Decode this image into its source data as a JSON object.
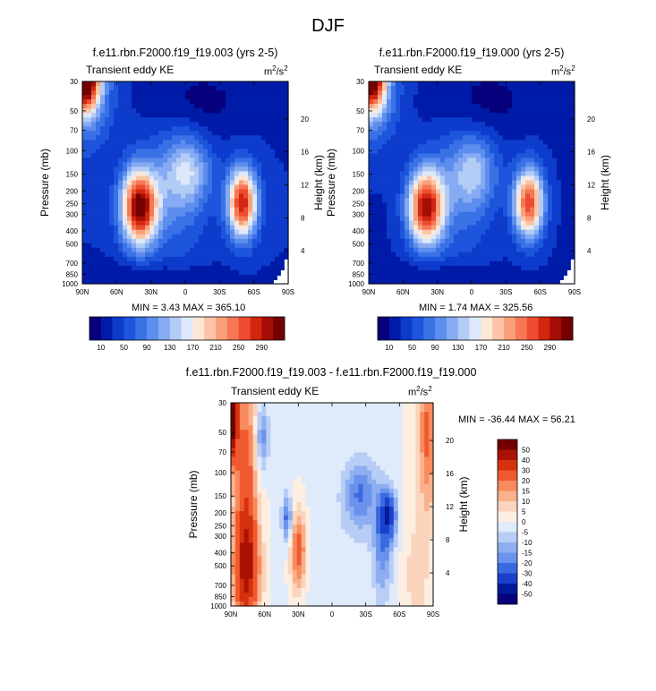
{
  "figure": {
    "title": "DJF"
  },
  "chart_data": [
    {
      "type": "heatmap",
      "title": "f.e11.rbn.F2000.f19_f19.003 (yrs 2-5)",
      "subtitle": "Transient eddy KE",
      "units": "m²/s²",
      "units_base": "m",
      "units_sup1": "2",
      "units_mid": "/s",
      "units_sup2": "2",
      "xlabel": "",
      "ylabel": "Pressure (mb)",
      "y2label": "Height (km)",
      "x_ticks": [
        "90N",
        "60N",
        "30N",
        "0",
        "30S",
        "60S",
        "90S"
      ],
      "y_ticks": [
        "30",
        "50",
        "70",
        "100",
        "150",
        "200",
        "250",
        "300",
        "400",
        "500",
        "700",
        "850",
        "1000"
      ],
      "y2_ticks": [
        "20",
        "16",
        "12",
        "8",
        "4"
      ],
      "min_label": "MIN =   3.43  MAX = 365.10",
      "min": 3.43,
      "max": 365.1,
      "legend_labels": [
        "10",
        "50",
        "90",
        "130",
        "170",
        "210",
        "250",
        "290"
      ],
      "features": [
        {
          "lat": 80,
          "p": 40,
          "value": 365
        },
        {
          "lat": 40,
          "p": 260,
          "value": 300
        },
        {
          "lat": -50,
          "p": 260,
          "value": 270
        }
      ]
    },
    {
      "type": "heatmap",
      "title": "f.e11.rbn.F2000.f19_f19.000 (yrs 2-5)",
      "subtitle": "Transient eddy KE",
      "units": "m²/s²",
      "units_base": "m",
      "units_sup1": "2",
      "units_mid": "/s",
      "units_sup2": "2",
      "xlabel": "",
      "ylabel": "Pressure (mb)",
      "y2label": "Height (km)",
      "x_ticks": [
        "90N",
        "60N",
        "30N",
        "0",
        "30S",
        "60S",
        "90S"
      ],
      "y_ticks": [
        "30",
        "50",
        "70",
        "100",
        "150",
        "200",
        "250",
        "300",
        "400",
        "500",
        "700",
        "850",
        "1000"
      ],
      "y2_ticks": [
        "20",
        "16",
        "12",
        "8",
        "4"
      ],
      "min_label": "MIN =   1.74  MAX = 325.56",
      "min": 1.74,
      "max": 325.56,
      "legend_labels": [
        "10",
        "50",
        "90",
        "130",
        "170",
        "210",
        "250",
        "290"
      ],
      "features": [
        {
          "lat": 80,
          "p": 40,
          "value": 325
        },
        {
          "lat": 40,
          "p": 260,
          "value": 290
        },
        {
          "lat": -50,
          "p": 260,
          "value": 260
        }
      ]
    },
    {
      "type": "heatmap",
      "title": "f.e11.rbn.F2000.f19_f19.003 - f.e11.rbn.F2000.f19_f19.000",
      "subtitle": "Transient eddy KE",
      "units": "m²/s²",
      "units_base": "m",
      "units_sup1": "2",
      "units_mid": "/s",
      "units_sup2": "2",
      "xlabel": "",
      "ylabel": "Pressure (mb)",
      "y2label": "Height (km)",
      "x_ticks": [
        "90N",
        "60N",
        "30N",
        "0",
        "30S",
        "60S",
        "90S"
      ],
      "y_ticks": [
        "30",
        "50",
        "70",
        "100",
        "150",
        "200",
        "250",
        "300",
        "400",
        "500",
        "700",
        "850",
        "1000"
      ],
      "y2_ticks": [
        "20",
        "16",
        "12",
        "8",
        "4"
      ],
      "min_label": "MIN = -36.44  MAX =  56.21",
      "min": -36.44,
      "max": 56.21,
      "legend_labels": [
        "50",
        "40",
        "30",
        "20",
        "15",
        "10",
        "5",
        "0",
        "-5",
        "-10",
        "-15",
        "-20",
        "-30",
        "-40",
        "-50"
      ],
      "features": [
        {
          "lat": 85,
          "p": 40,
          "value": 56
        },
        {
          "lat": 75,
          "p": 350,
          "value": 35
        },
        {
          "lat": 30,
          "p": 300,
          "value": 25
        },
        {
          "lat": -50,
          "p": 200,
          "value": -36
        }
      ]
    }
  ],
  "palettes": {
    "seq": [
      "#07007d",
      "#001ba8",
      "#0d3bcc",
      "#1d56dc",
      "#3a72e6",
      "#5d8ded",
      "#86abf2",
      "#b3ccf6",
      "#dde8fb",
      "#fde7d6",
      "#fcc4a4",
      "#f9a07b",
      "#f57755",
      "#ed4c2e",
      "#d12711",
      "#a60d04",
      "#740000"
    ],
    "div": [
      "#740000",
      "#aa1204",
      "#d6310f",
      "#f05a30",
      "#f88a5d",
      "#fab08c",
      "#fbd4bd",
      "#fdeee2",
      "#dfeafb",
      "#b7cdf6",
      "#8daef1",
      "#6b92ec",
      "#3a6ae0",
      "#1a3fcd",
      "#001a98",
      "#07007d"
    ]
  }
}
